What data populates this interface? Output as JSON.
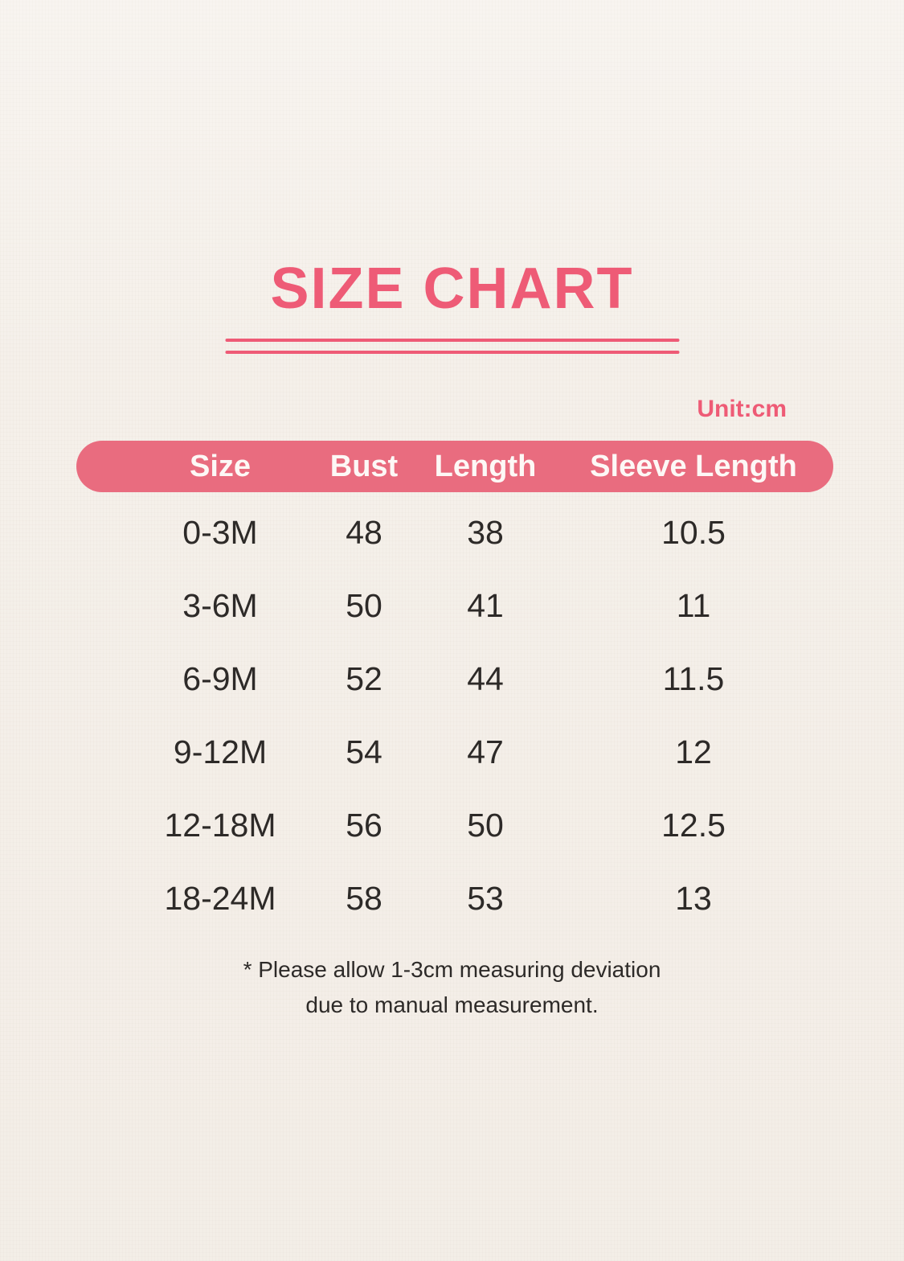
{
  "title": "SIZE CHART",
  "unit_label": "Unit:cm",
  "colors": {
    "accent_pink": "#ee5b76",
    "header_bar_pink": "#e96c7f",
    "header_text": "#fdf8f6",
    "body_text": "#2d2a28",
    "background": "#f5f0ea"
  },
  "chart_data": {
    "type": "table",
    "title": "SIZE CHART",
    "unit": "cm",
    "columns": [
      "Size",
      "Bust",
      "Length",
      "Sleeve Length"
    ],
    "rows": [
      [
        "0-3M",
        "48",
        "38",
        "10.5"
      ],
      [
        "3-6M",
        "50",
        "41",
        "11"
      ],
      [
        "6-9M",
        "52",
        "44",
        "11.5"
      ],
      [
        "9-12M",
        "54",
        "47",
        "12"
      ],
      [
        "12-18M",
        "56",
        "50",
        "12.5"
      ],
      [
        "18-24M",
        "58",
        "53",
        "13"
      ]
    ]
  },
  "footnote": {
    "line1": "* Please allow 1-3cm measuring deviation",
    "line2": "due to manual measurement."
  }
}
